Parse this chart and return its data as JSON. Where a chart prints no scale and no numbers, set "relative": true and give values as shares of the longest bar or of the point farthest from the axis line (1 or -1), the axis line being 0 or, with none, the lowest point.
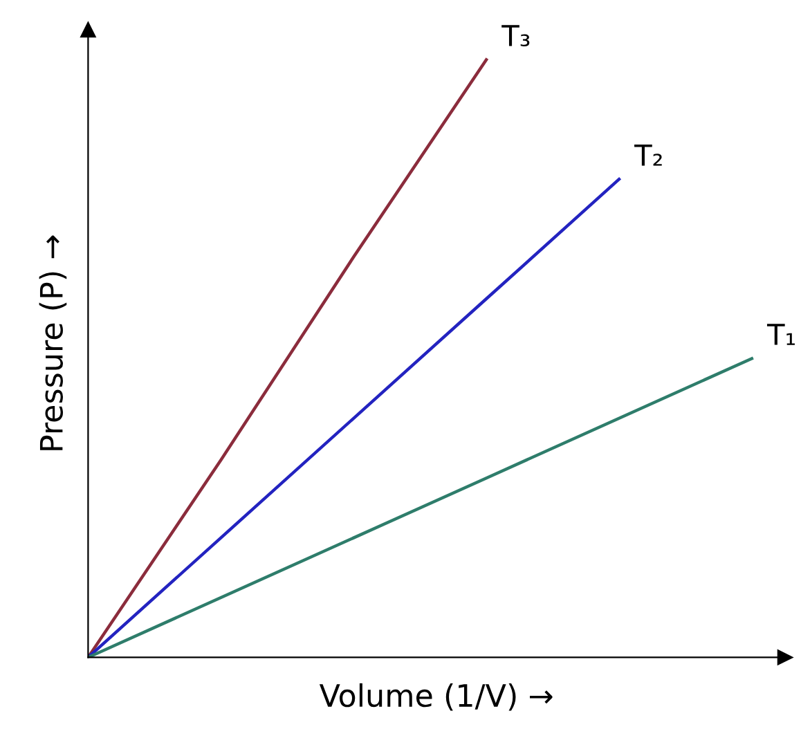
{
  "chart_data": {
    "type": "line",
    "relative": true,
    "xlabel": "Volume (1/V) →",
    "ylabel": "Pressure (P) →",
    "categories": [
      null,
      null,
      null,
      null,
      null,
      null
    ],
    "series": [
      {
        "name": "T₃",
        "color": "#8b2c3c",
        "values": [
          0,
          0.33,
          0.67,
          1,
          null,
          null
        ]
      },
      {
        "name": "T₂",
        "color": "#2323c0",
        "values": [
          0,
          0.2,
          0.4,
          0.6,
          0.8,
          null
        ]
      },
      {
        "name": "T₁",
        "color": "#2e7d6b",
        "values": [
          0,
          0.1,
          0.2,
          0.3,
          0.4,
          0.5
        ]
      }
    ]
  }
}
